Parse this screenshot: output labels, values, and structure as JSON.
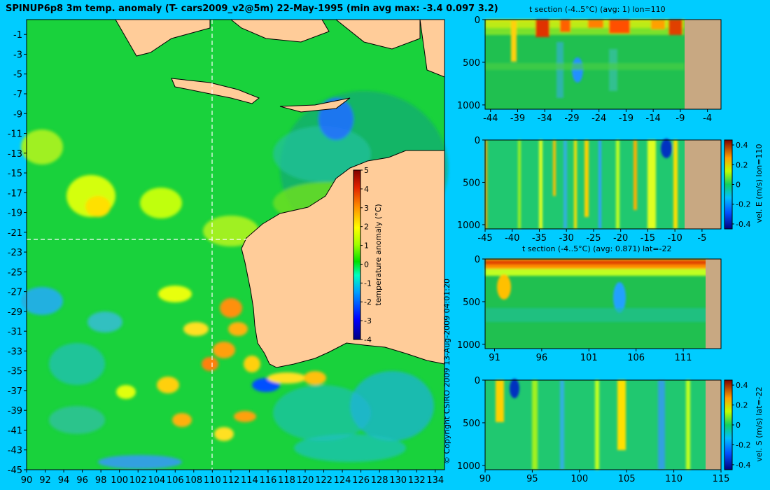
{
  "title": "SPINUP6p8 3m temp. anomaly (T- cars2009_v2@5m) 22-May-1995 (min avg max: -3.4 0.097 3.2)",
  "copyright": "© Copyright CSIRO 2009   13-Aug-2009 04:01:20",
  "colors": {
    "background": "#00ccff",
    "land": "#ffcc99",
    "section_land": "#c8a882"
  },
  "chart_data": [
    {
      "type": "heatmap",
      "id": "map",
      "title": "",
      "x_ticks": [
        90,
        92,
        94,
        96,
        98,
        100,
        102,
        104,
        106,
        108,
        110,
        112,
        114,
        116,
        118,
        120,
        122,
        124,
        126,
        128,
        130,
        132,
        134
      ],
      "y_ticks": [
        -1,
        -3,
        -5,
        -7,
        -9,
        -11,
        -13,
        -15,
        -17,
        -19,
        -21,
        -23,
        -25,
        -27,
        -29,
        -31,
        -33,
        -35,
        -37,
        -39,
        -41,
        -43,
        -45
      ],
      "xlim": [
        90,
        135
      ],
      "ylim": [
        -45,
        0.5
      ],
      "crosshair": {
        "lon": 110,
        "lat": -22
      },
      "colorbar": {
        "label": "temperature anomaly (°C)",
        "ticks": [
          5,
          4,
          3,
          2,
          1,
          0,
          -1,
          -2,
          -3,
          -4
        ],
        "range": [
          -4,
          5
        ]
      }
    },
    {
      "type": "heatmap",
      "id": "p1",
      "title": "t section (-4..5°C) (avg: 1) lon=110",
      "x_ticks": [
        -44,
        -39,
        -34,
        -29,
        -24,
        -19,
        -14,
        -9,
        -4
      ],
      "xlim": [
        -45,
        -1.5
      ],
      "y_ticks": [
        0,
        500,
        1000
      ],
      "ylim": [
        1050,
        0
      ],
      "land_from": -8.2
    },
    {
      "type": "heatmap",
      "id": "p2",
      "title": "",
      "x_ticks": [
        -45,
        -40,
        -35,
        -30,
        -25,
        -20,
        -15,
        -10,
        -5
      ],
      "xlim": [
        -45,
        -1.5
      ],
      "y_ticks": [
        0,
        500,
        1000
      ],
      "ylim": [
        1050,
        0
      ],
      "land_from": -8.2,
      "colorbar": {
        "label": "vel. E (m/s) lon=110",
        "ticks": [
          0.4,
          0.2,
          0,
          -0.2,
          -0.4
        ],
        "range": [
          -0.45,
          0.45
        ]
      }
    },
    {
      "type": "heatmap",
      "id": "p3",
      "title": "t section (-4..5°C) (avg: 0.871) lat=-22",
      "x_ticks": [
        91,
        96,
        101,
        106,
        111
      ],
      "xlim": [
        90,
        115
      ],
      "y_ticks": [
        0,
        500,
        1000
      ],
      "ylim": [
        1050,
        0
      ],
      "land_from": 113.2
    },
    {
      "type": "heatmap",
      "id": "p4",
      "title": "",
      "x_ticks": [
        90,
        95,
        100,
        105,
        110,
        115
      ],
      "xlim": [
        90,
        115
      ],
      "y_ticks": [
        0,
        500,
        1000
      ],
      "ylim": [
        1050,
        0
      ],
      "land_from": 113.2,
      "colorbar": {
        "label": "vel. S (m/s) lat=-22",
        "ticks": [
          0.4,
          0.2,
          0,
          -0.2,
          -0.4
        ],
        "range": [
          -0.45,
          0.45
        ]
      }
    }
  ]
}
